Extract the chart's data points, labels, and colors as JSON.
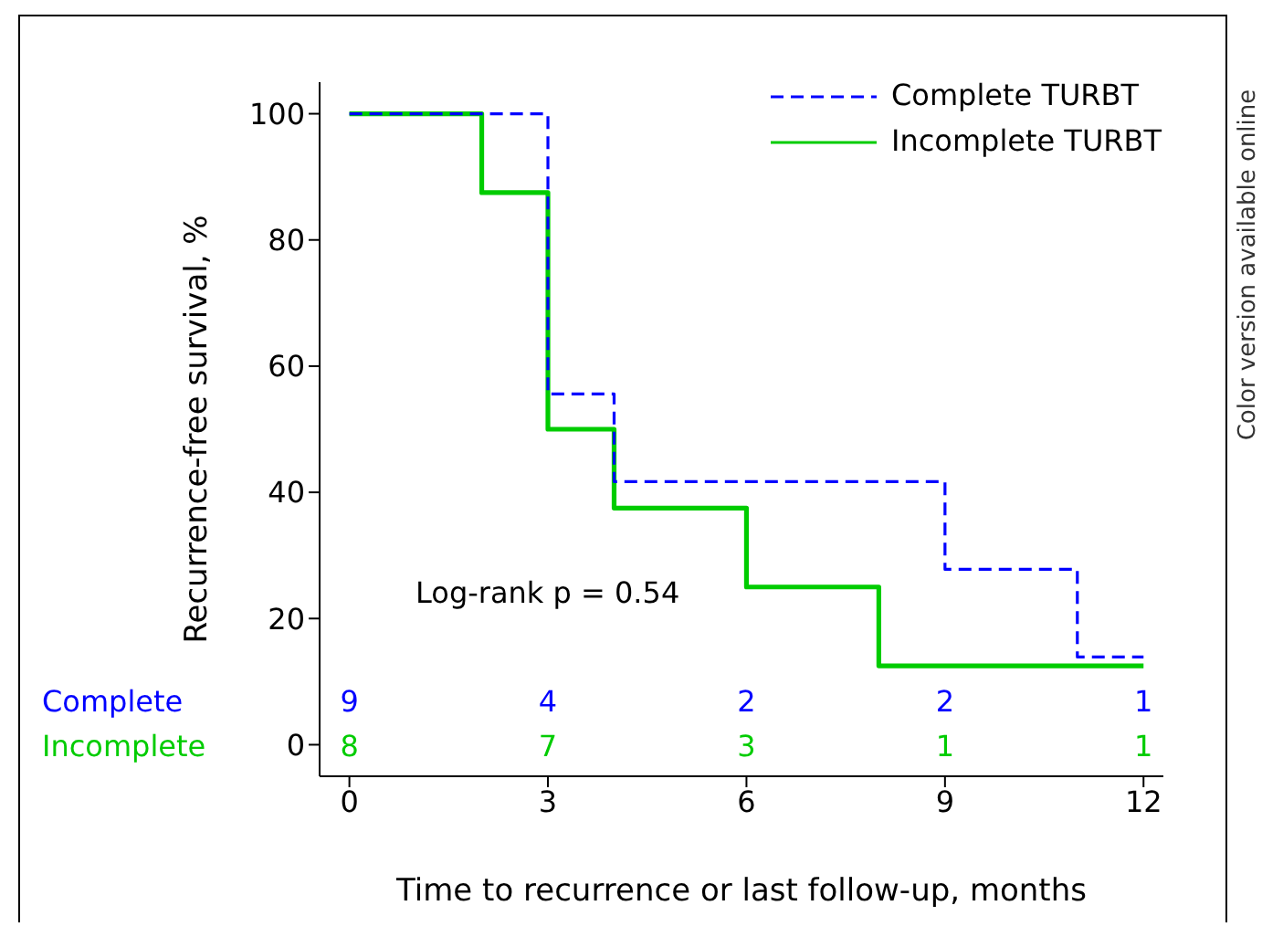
{
  "chart_data": {
    "type": "step",
    "xlabel": "Time to recurrence or last follow-up, months",
    "ylabel": "Recurrence-free survival, %",
    "series": [
      {
        "name": "Complete TURBT",
        "color": "#0000ff",
        "line_style": "dashed",
        "x": [
          0,
          3,
          4,
          9,
          11,
          12
        ],
        "values": [
          100,
          55.6,
          41.7,
          27.8,
          13.9,
          13.9
        ]
      },
      {
        "name": "Incomplete TURBT",
        "color": "#00cc00",
        "line_style": "solid",
        "x": [
          0,
          2,
          3,
          4,
          6,
          8,
          12
        ],
        "values": [
          100,
          87.5,
          50,
          37.5,
          25,
          12.5,
          12.5
        ]
      }
    ],
    "xlim": [
      -0.45,
      12.3
    ],
    "xticks": [
      0,
      3,
      6,
      9,
      12
    ],
    "ylim": [
      -5,
      105
    ],
    "yticks": [
      0,
      20,
      40,
      60,
      80,
      100
    ],
    "grid": false,
    "legend": "top right",
    "marker": "none",
    "annotations": [
      "Log-rank p = 0.54",
      "Color version available online",
      "Complete",
      "Incomplete",
      "9",
      "4",
      "2",
      "2",
      "1",
      "8",
      "7",
      "3",
      "1",
      "1"
    ]
  }
}
